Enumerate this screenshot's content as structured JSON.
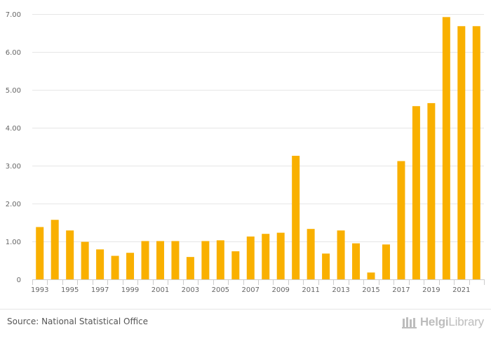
{
  "chart_data": {
    "type": "bar",
    "categories": [
      "1993",
      "1994",
      "1995",
      "1996",
      "1997",
      "1998",
      "1999",
      "2000",
      "2001",
      "2002",
      "2003",
      "2004",
      "2005",
      "2006",
      "2007",
      "2008",
      "2009",
      "2010",
      "2011",
      "2012",
      "2013",
      "2014",
      "2015",
      "2016",
      "2017",
      "2018",
      "2019",
      "2020",
      "2021",
      "2022"
    ],
    "values": [
      1.38,
      1.57,
      1.29,
      0.99,
      0.79,
      0.62,
      0.7,
      1.01,
      1.01,
      1.01,
      0.59,
      1.01,
      1.03,
      0.74,
      1.13,
      1.2,
      1.23,
      3.26,
      1.33,
      0.68,
      1.29,
      0.95,
      0.18,
      0.92,
      3.12,
      4.57,
      4.65,
      6.92,
      6.68,
      6.68
    ],
    "x_tick_labels": [
      "1993",
      "1995",
      "1997",
      "1999",
      "2001",
      "2003",
      "2005",
      "2007",
      "2009",
      "2011",
      "2013",
      "2015",
      "2017",
      "2019",
      "2021"
    ],
    "y_ticks": [
      0,
      1,
      2,
      3,
      4,
      5,
      6,
      7
    ],
    "y_tick_labels": [
      "0",
      "1.00",
      "2.00",
      "3.00",
      "4.00",
      "5.00",
      "6.00",
      "7.00"
    ],
    "ylim": [
      0,
      7
    ],
    "grid": true,
    "bar_color": "#f9b000",
    "title": "",
    "xlabel": "",
    "ylabel": ""
  },
  "footer": {
    "source": "Source: National Statistical Office",
    "brand_regular": "Helgi",
    "brand_light": "Library"
  },
  "colors": {
    "grid": "#e6e6e6",
    "axis": "#cccccc",
    "brand": "#bdbdbd"
  },
  "icons": {
    "brand": "helgilibrary-logo-icon"
  }
}
